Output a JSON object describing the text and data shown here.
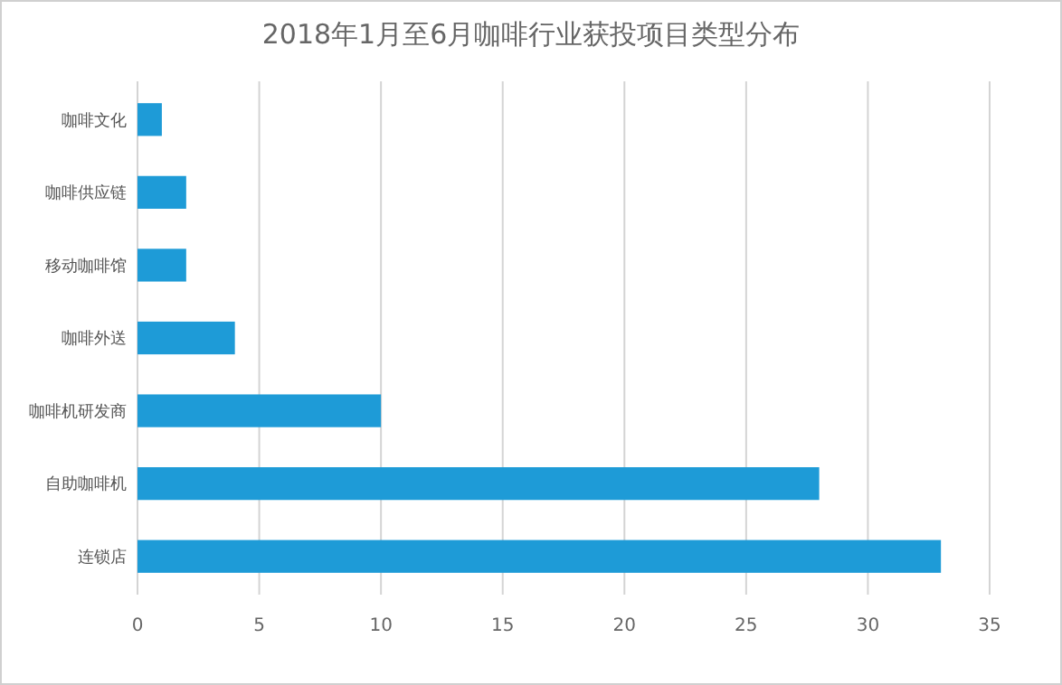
{
  "chart_data": {
    "type": "bar",
    "orientation": "horizontal",
    "title": "2018年1月至6月咖啡行业获投项目类型分布",
    "categories": [
      "咖啡文化",
      "咖啡供应链",
      "移动咖啡馆",
      "咖啡外送",
      "咖啡机研发商",
      "自助咖啡机",
      "连锁店"
    ],
    "values": [
      1,
      2,
      2,
      4,
      10,
      28,
      33
    ],
    "color": "#1e9bd7",
    "xlim": [
      0,
      35
    ],
    "xticks": [
      0,
      5,
      10,
      15,
      20,
      25,
      30,
      35
    ],
    "grid": "x"
  }
}
